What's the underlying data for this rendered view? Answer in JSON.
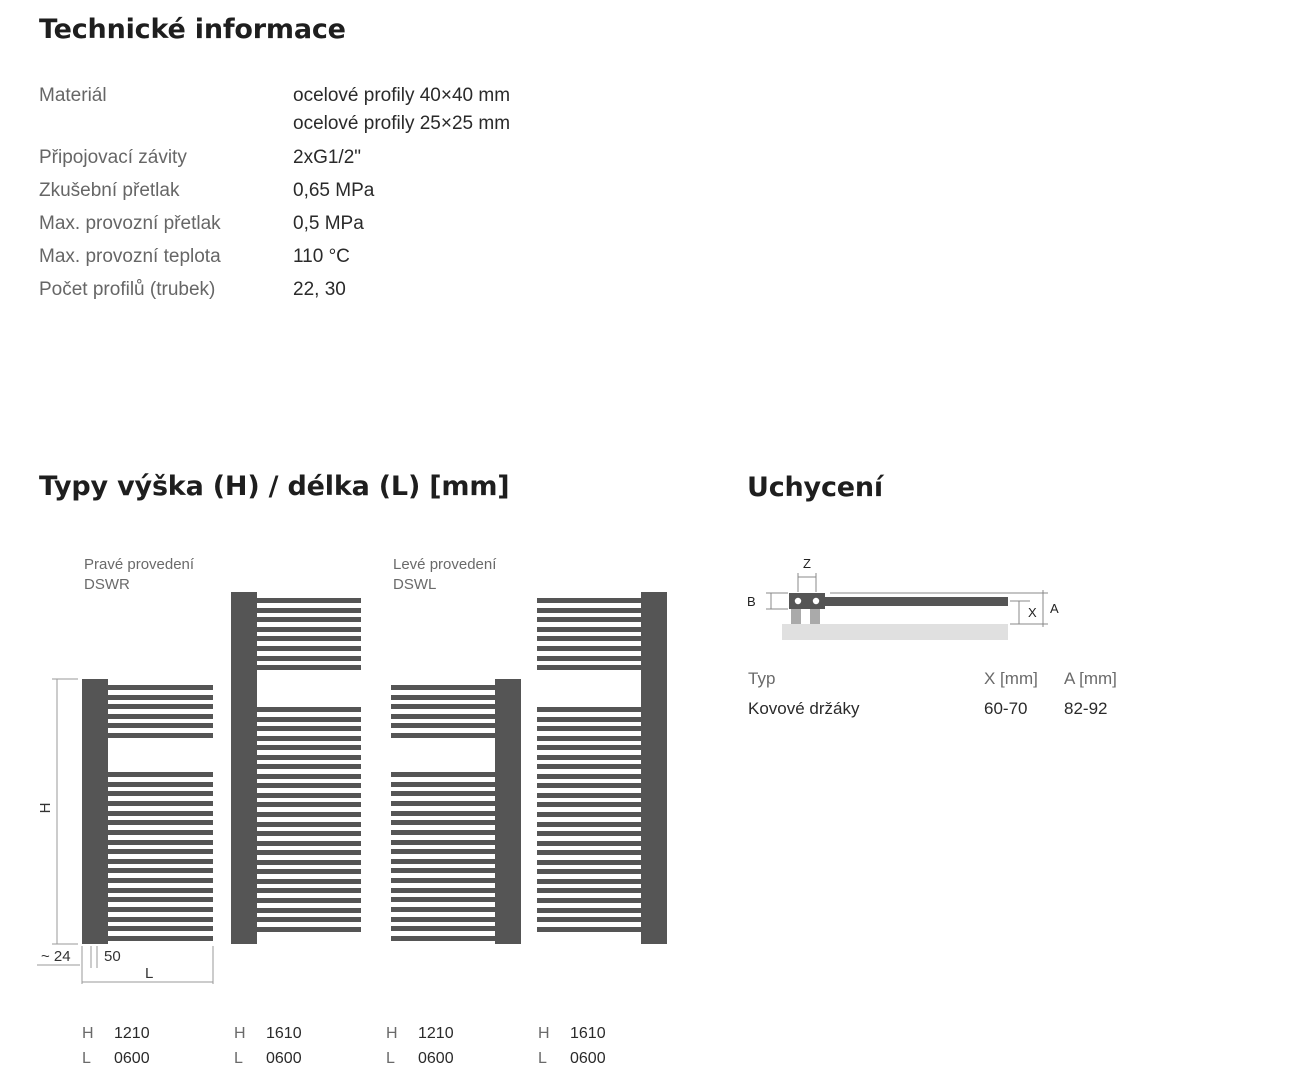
{
  "tech_section": {
    "title": "Technické informace",
    "rows": [
      {
        "label": "Materiál",
        "values": [
          "ocelové profily 40×40 mm",
          "ocelové profily 25×25 mm"
        ]
      },
      {
        "label": "Připojovací závity",
        "values": [
          "2xG1/2\""
        ]
      },
      {
        "label": "Zkušební přetlak",
        "values": [
          "0,65 MPa"
        ]
      },
      {
        "label": "Max. provozní přetlak",
        "values": [
          "0,5 MPa"
        ]
      },
      {
        "label": "Max. provozní teplota",
        "values": [
          "110 °C"
        ]
      },
      {
        "label": "Počet profilů (trubek)",
        "values": [
          "22, 30"
        ]
      }
    ]
  },
  "types_section": {
    "title": "Typy výška (H) / délka (L) [mm]",
    "variants": [
      {
        "name": "Pravé provedení",
        "code": "DSWR"
      },
      {
        "name": "Levé provedení",
        "code": "DSWL"
      }
    ],
    "drawing_labels": {
      "height": "H",
      "length": "L",
      "offset": "~ 24",
      "profile": "50"
    },
    "models": [
      {
        "h_key": "H",
        "h": "1210",
        "l_key": "L",
        "l": "0600"
      },
      {
        "h_key": "H",
        "h": "1610",
        "l_key": "L",
        "l": "0600"
      },
      {
        "h_key": "H",
        "h": "1210",
        "l_key": "L",
        "l": "0600"
      },
      {
        "h_key": "H",
        "h": "1610",
        "l_key": "L",
        "l": "0600"
      }
    ],
    "colors": {
      "radiator": "#555555",
      "dimension_line": "#9a9a9a"
    }
  },
  "mount_section": {
    "title": "Uchycení",
    "diagram_labels": {
      "z": "Z",
      "b": "B",
      "x": "X",
      "a": "A"
    },
    "table": {
      "headers": [
        "Typ",
        "X [mm]",
        "A [mm]"
      ],
      "rows": [
        [
          "Kovové držáky",
          "60-70",
          "82-92"
        ]
      ]
    },
    "colors": {
      "wall": "#e0e0e0",
      "bar": "#555555",
      "bracket": "#aaaaaa"
    }
  }
}
